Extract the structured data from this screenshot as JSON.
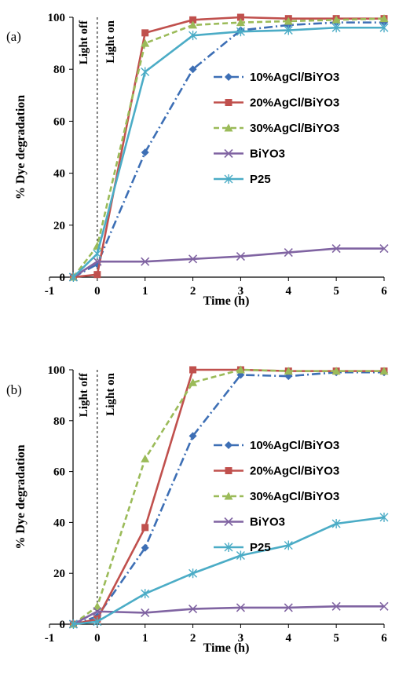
{
  "chart_data": [
    {
      "type": "line",
      "panel_label": "(a)",
      "xlabel": "Time (h)",
      "ylabel": "% Dye degradation",
      "xlim": [
        -1,
        6
      ],
      "ylim": [
        0,
        100
      ],
      "x_ticks": [
        -1,
        0,
        1,
        2,
        3,
        4,
        5,
        6
      ],
      "y_ticks": [
        0,
        20,
        40,
        60,
        80,
        100
      ],
      "annotations": [
        "Light off",
        "Light on"
      ],
      "legend_position": "right",
      "series": [
        {
          "name": "10%AgCl/BiYO3",
          "color": "#3d6fb5",
          "dash": "dashdot",
          "marker": "diamond",
          "x": [
            -0.5,
            0,
            1,
            2,
            3,
            4,
            5,
            6
          ],
          "y": [
            0,
            5,
            48,
            80,
            95,
            97,
            98,
            98
          ]
        },
        {
          "name": "20%AgCl/BiYO3",
          "color": "#c0504d",
          "dash": "solid",
          "marker": "square",
          "x": [
            -0.5,
            0,
            1,
            2,
            3,
            4,
            5,
            6
          ],
          "y": [
            0,
            1,
            94,
            99,
            100,
            99.5,
            99.5,
            99.5
          ]
        },
        {
          "name": "30%AgCl/BiYO3",
          "color": "#9bbb59",
          "dash": "dash",
          "marker": "triangle",
          "x": [
            -0.5,
            0,
            1,
            2,
            3,
            4,
            5,
            6
          ],
          "y": [
            0,
            12,
            90,
            97,
            98,
            98.5,
            99,
            99.5
          ]
        },
        {
          "name": "BiYO3",
          "color": "#8064a2",
          "dash": "solid",
          "marker": "x",
          "x": [
            -0.5,
            0,
            1,
            2,
            3,
            4,
            5,
            6
          ],
          "y": [
            0,
            6,
            6,
            7,
            8,
            9.5,
            11,
            11
          ]
        },
        {
          "name": "P25",
          "color": "#4bacc6",
          "dash": "solid",
          "marker": "star",
          "x": [
            -0.5,
            0,
            1,
            2,
            3,
            4,
            5,
            6
          ],
          "y": [
            0,
            9,
            79,
            93,
            94.5,
            95,
            96,
            96
          ]
        }
      ]
    },
    {
      "type": "line",
      "panel_label": "(b)",
      "xlabel": "Time (h)",
      "ylabel": "% Dye degradation",
      "xlim": [
        -1,
        6
      ],
      "ylim": [
        0,
        100
      ],
      "x_ticks": [
        -1,
        0,
        1,
        2,
        3,
        4,
        5,
        6
      ],
      "y_ticks": [
        0,
        20,
        40,
        60,
        80,
        100
      ],
      "annotations": [
        "Light off",
        "Light on"
      ],
      "legend_position": "right",
      "series": [
        {
          "name": "10%AgCl/BiYO3",
          "color": "#3d6fb5",
          "dash": "dashdot",
          "marker": "diamond",
          "x": [
            -0.5,
            0,
            1,
            2,
            3,
            4,
            5,
            6
          ],
          "y": [
            0,
            3,
            30,
            74,
            98,
            97.5,
            99,
            99
          ]
        },
        {
          "name": "20%AgCl/BiYO3",
          "color": "#c0504d",
          "dash": "solid",
          "marker": "square",
          "x": [
            -0.5,
            0,
            1,
            2,
            3,
            4,
            5,
            6
          ],
          "y": [
            0,
            2,
            38,
            100,
            100,
            99.5,
            99.5,
            99.5
          ]
        },
        {
          "name": "30%AgCl/BiYO3",
          "color": "#9bbb59",
          "dash": "dash",
          "marker": "triangle",
          "x": [
            -0.5,
            0,
            1,
            2,
            3,
            4,
            5,
            6
          ],
          "y": [
            0,
            7,
            65,
            95,
            100,
            99.5,
            99.5,
            99.5
          ]
        },
        {
          "name": "BiYO3",
          "color": "#8064a2",
          "dash": "solid",
          "marker": "x",
          "x": [
            -0.5,
            0,
            1,
            2,
            3,
            4,
            5,
            6
          ],
          "y": [
            0,
            5,
            4.5,
            6,
            6.5,
            6.5,
            7,
            7
          ]
        },
        {
          "name": "P25",
          "color": "#4bacc6",
          "dash": "solid",
          "marker": "star",
          "x": [
            -0.5,
            0,
            1,
            2,
            3,
            4,
            5,
            6
          ],
          "y": [
            0,
            1,
            12,
            20,
            27,
            31,
            39.5,
            42
          ]
        }
      ]
    }
  ]
}
